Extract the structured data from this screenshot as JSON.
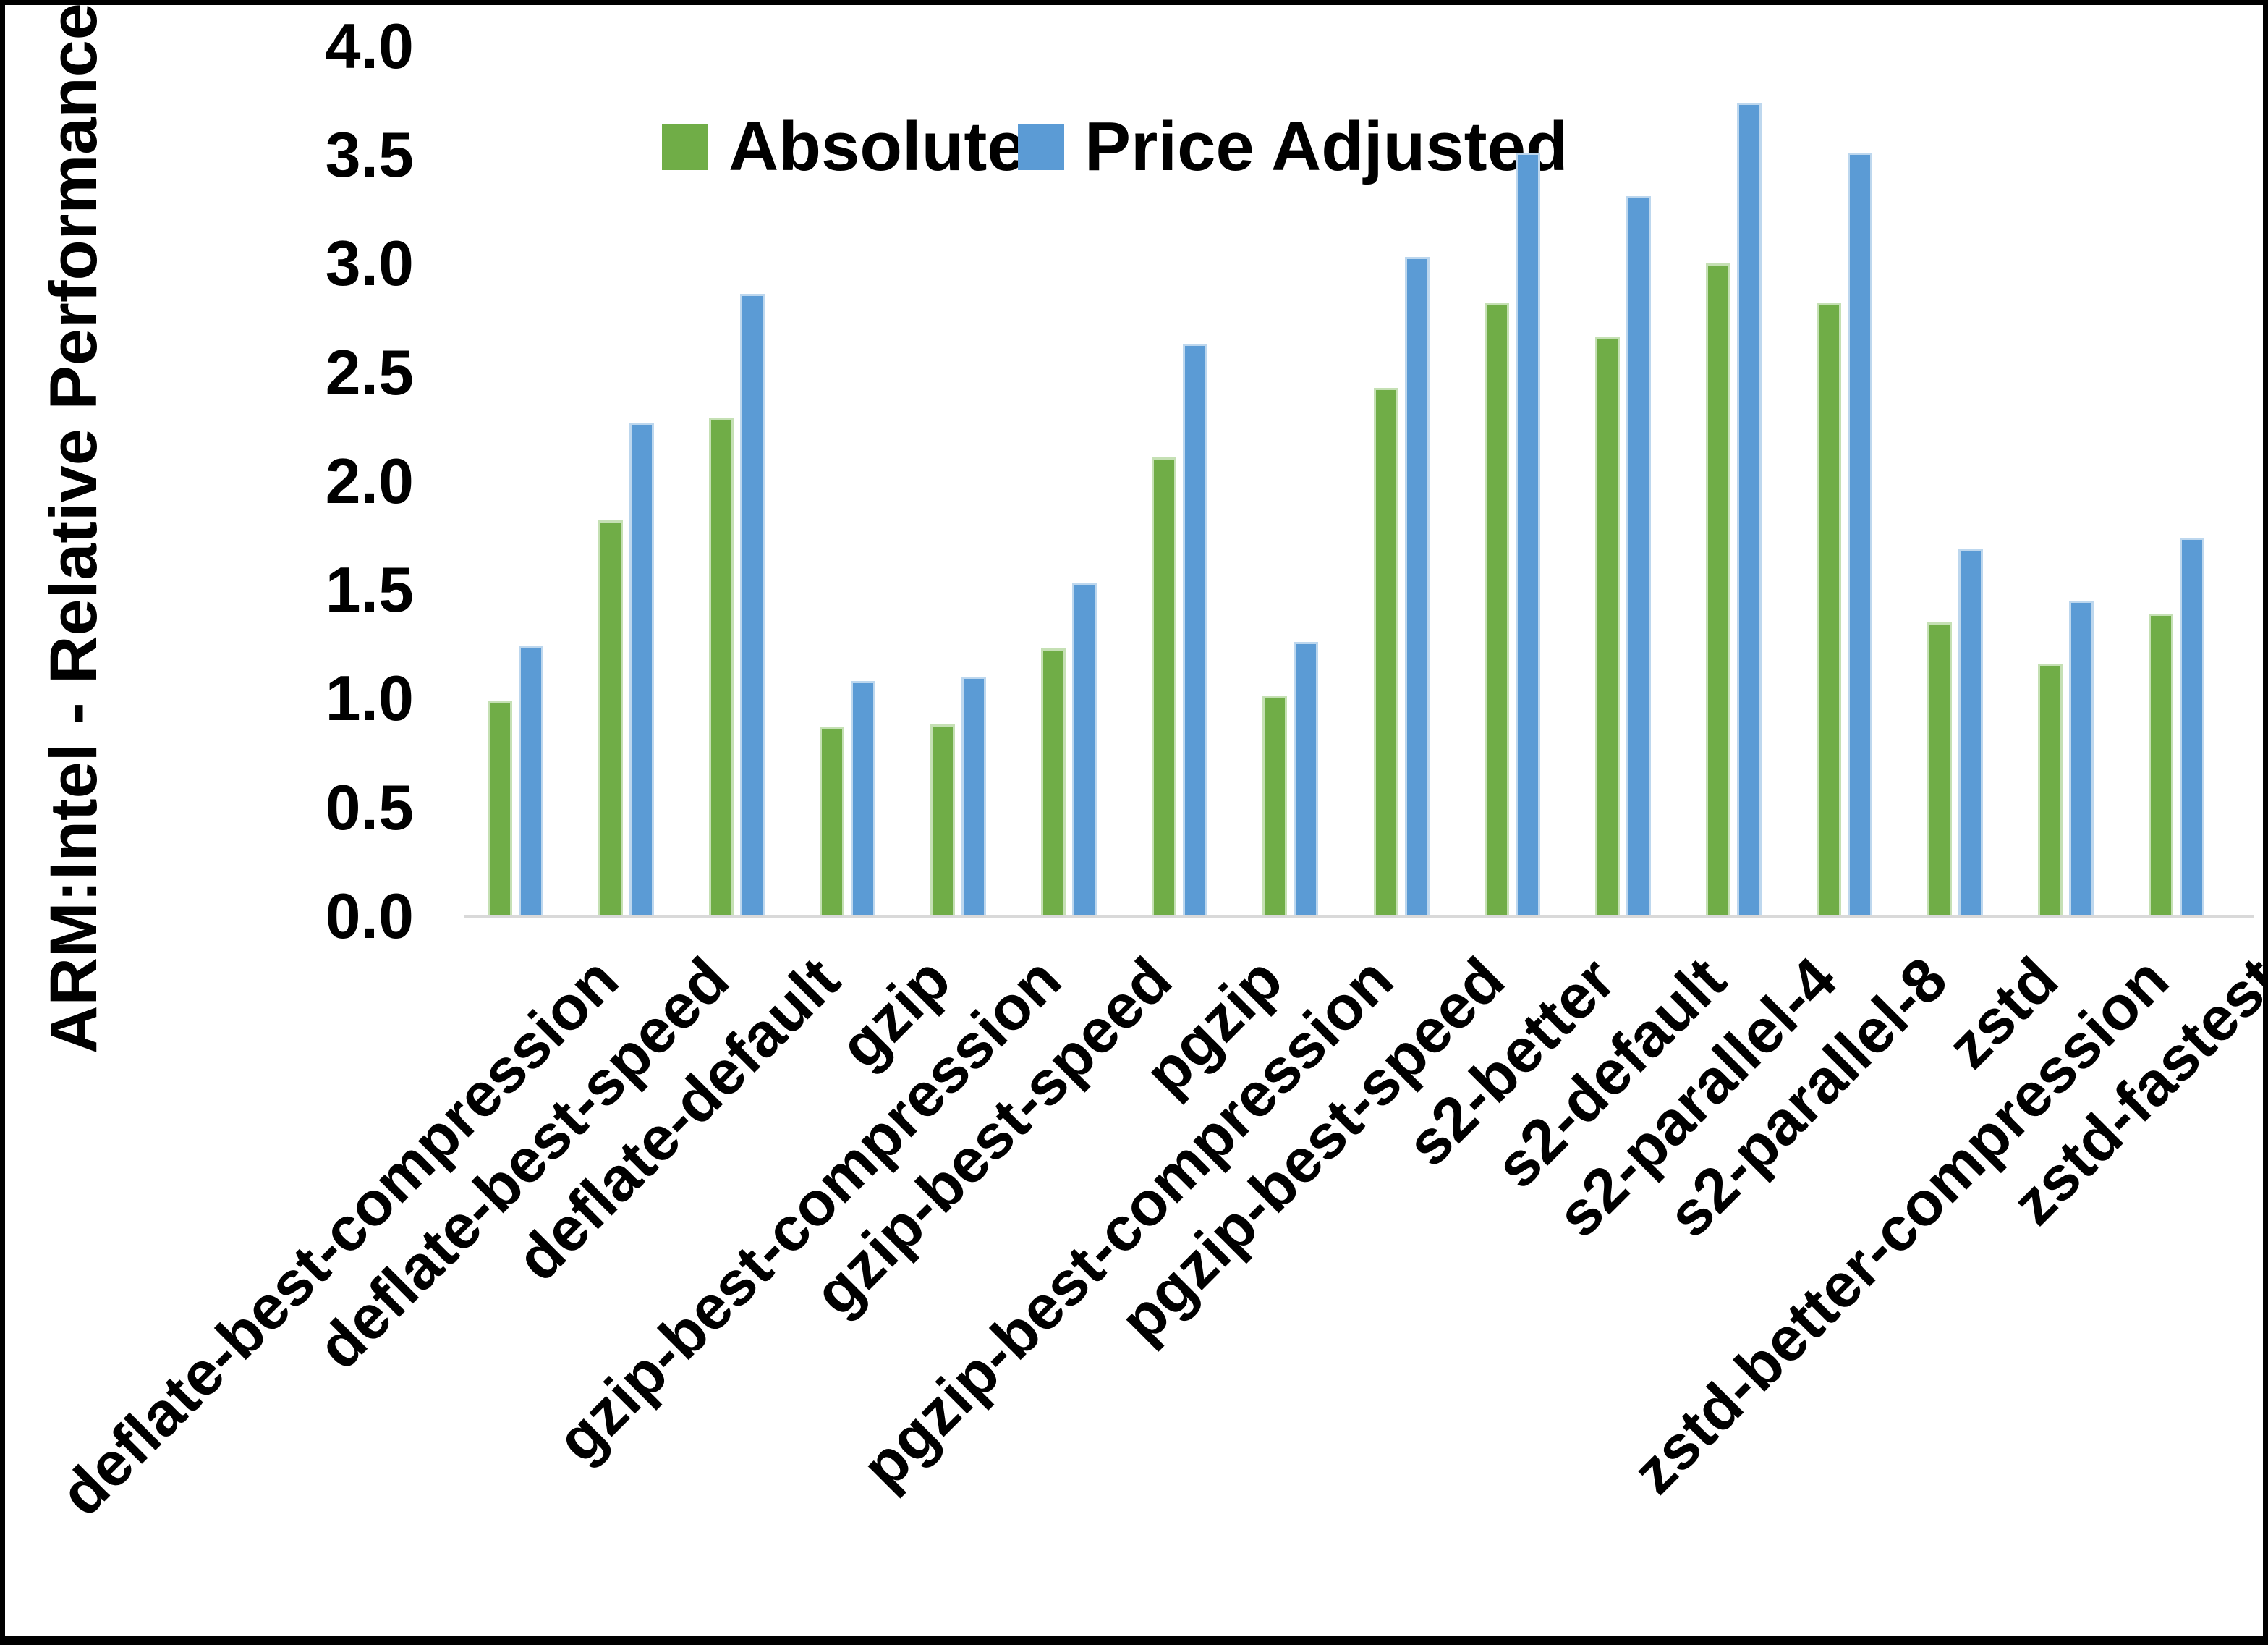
{
  "y_axis": {
    "title": "ARM:Intel - Relative Performance",
    "tick_labels": [
      "0.0",
      "0.5",
      "1.0",
      "1.5",
      "2.0",
      "2.5",
      "3.0",
      "3.5",
      "4.0"
    ],
    "min": 0.0,
    "max": 4.0
  },
  "legend": [
    {
      "label": "Absolute",
      "color": "#70AD47"
    },
    {
      "label": "Price Adjusted",
      "color": "#5B9BD5"
    }
  ],
  "colors": {
    "absolute_green": "#70AD47",
    "price_adjusted_blue": "#5B9BD5",
    "axis_line_gray": "#d9d9d9",
    "frame_black": "#000000"
  },
  "chart_data": {
    "type": "bar",
    "title": "",
    "xlabel": "",
    "ylabel": "ARM:Intel - Relative Performance",
    "ylim": [
      0.0,
      4.0
    ],
    "ytick_step": 0.5,
    "grid": false,
    "legend_position": "top",
    "categories": [
      "deflate-best-compression",
      "deflate-best-speed",
      "deflate-default",
      "gzip",
      "gzip-best-compression",
      "gzip-best-speed",
      "pgzip",
      "pgzip-best-compression",
      "pgzip-best-speed",
      "s2-better",
      "s2-default",
      "s2-parallel-4",
      "s2-parallel-8",
      "zstd",
      "zstd-better-compression",
      "zstd-fastest"
    ],
    "series": [
      {
        "name": "Absolute",
        "color": "#70AD47",
        "values": [
          0.99,
          1.82,
          2.29,
          0.87,
          0.88,
          1.23,
          2.11,
          1.01,
          2.43,
          2.82,
          2.66,
          3.0,
          2.82,
          1.35,
          1.16,
          1.39
        ]
      },
      {
        "name": "Price Adjusted",
        "color": "#5B9BD5",
        "values": [
          1.24,
          2.27,
          2.86,
          1.08,
          1.1,
          1.53,
          2.63,
          1.26,
          3.03,
          3.51,
          3.31,
          3.74,
          3.51,
          1.69,
          1.45,
          1.74
        ]
      }
    ]
  }
}
